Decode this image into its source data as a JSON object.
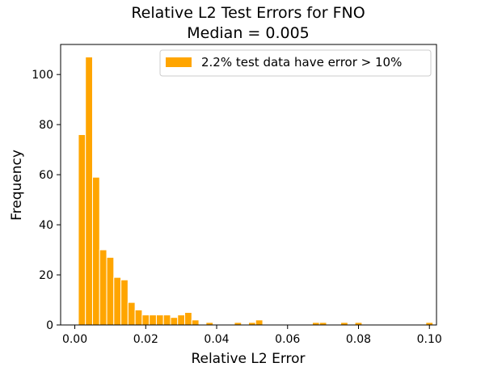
{
  "chart_data": {
    "type": "bar",
    "title": "Relative L2 Test Errors for FNO",
    "subtitle": "Median = 0.005",
    "xlabel": "Relative L2 Error",
    "ylabel": "Frequency",
    "xlim": [
      -0.004,
      0.102
    ],
    "ylim": [
      0,
      112
    ],
    "xticks": [
      {
        "value": 0.0,
        "label": "0.00"
      },
      {
        "value": 0.02,
        "label": "0.02"
      },
      {
        "value": 0.04,
        "label": "0.04"
      },
      {
        "value": 0.06,
        "label": "0.06"
      },
      {
        "value": 0.08,
        "label": "0.08"
      },
      {
        "value": 0.1,
        "label": "0.10"
      }
    ],
    "yticks": [
      {
        "value": 0,
        "label": "0"
      },
      {
        "value": 20,
        "label": "20"
      },
      {
        "value": 40,
        "label": "40"
      },
      {
        "value": 60,
        "label": "60"
      },
      {
        "value": 80,
        "label": "80"
      },
      {
        "value": 100,
        "label": "100"
      }
    ],
    "bin_width": 0.002,
    "bins": [
      {
        "x0": 0.001,
        "count": 76
      },
      {
        "x0": 0.003,
        "count": 107
      },
      {
        "x0": 0.005,
        "count": 59
      },
      {
        "x0": 0.007,
        "count": 30
      },
      {
        "x0": 0.009,
        "count": 27
      },
      {
        "x0": 0.011,
        "count": 19
      },
      {
        "x0": 0.013,
        "count": 18
      },
      {
        "x0": 0.015,
        "count": 9
      },
      {
        "x0": 0.017,
        "count": 6
      },
      {
        "x0": 0.019,
        "count": 4
      },
      {
        "x0": 0.021,
        "count": 4
      },
      {
        "x0": 0.023,
        "count": 4
      },
      {
        "x0": 0.025,
        "count": 4
      },
      {
        "x0": 0.027,
        "count": 3
      },
      {
        "x0": 0.029,
        "count": 4
      },
      {
        "x0": 0.031,
        "count": 5
      },
      {
        "x0": 0.033,
        "count": 2
      },
      {
        "x0": 0.035,
        "count": 0
      },
      {
        "x0": 0.037,
        "count": 1
      },
      {
        "x0": 0.039,
        "count": 0
      },
      {
        "x0": 0.041,
        "count": 0
      },
      {
        "x0": 0.043,
        "count": 0
      },
      {
        "x0": 0.045,
        "count": 1
      },
      {
        "x0": 0.047,
        "count": 0
      },
      {
        "x0": 0.049,
        "count": 1
      },
      {
        "x0": 0.051,
        "count": 2
      },
      {
        "x0": 0.067,
        "count": 1
      },
      {
        "x0": 0.069,
        "count": 1
      },
      {
        "x0": 0.075,
        "count": 1
      },
      {
        "x0": 0.079,
        "count": 1
      },
      {
        "x0": 0.099,
        "count": 1
      }
    ],
    "legend": {
      "label": "2.2% test data have error > 10%",
      "placement": "top-right"
    },
    "bar_color": "#ffa500",
    "bar_edge_color": "#ffffff",
    "grid": false
  }
}
